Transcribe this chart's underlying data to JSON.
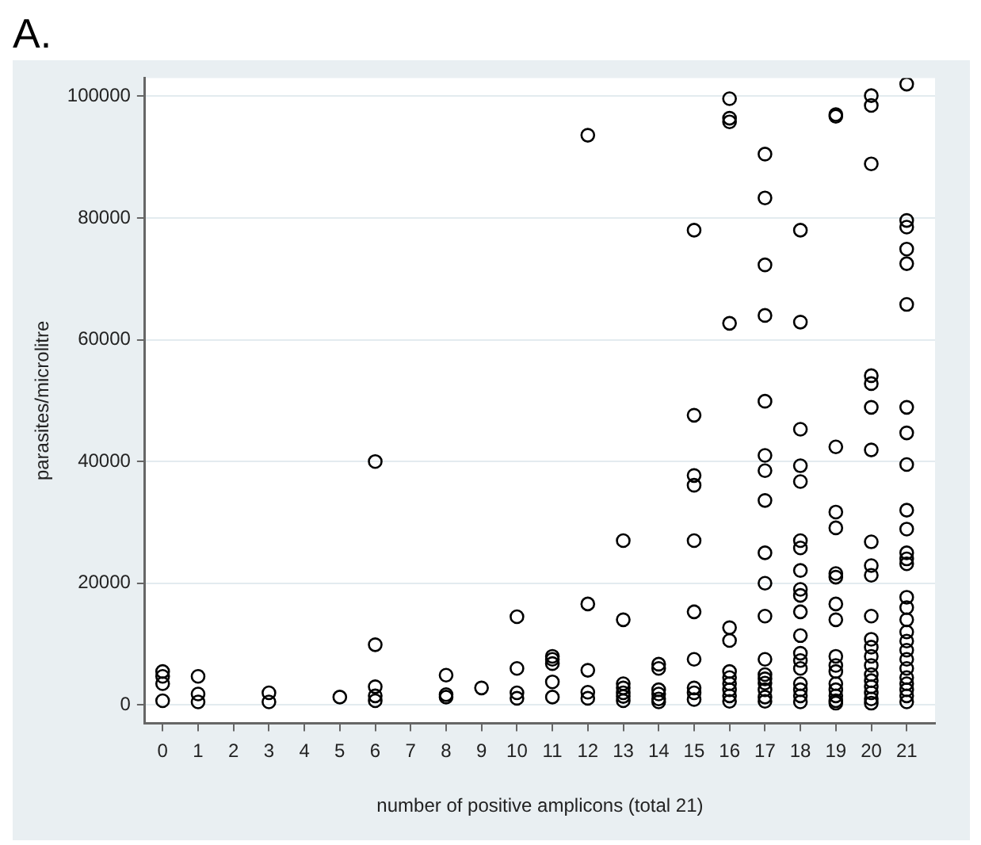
{
  "chart_data": {
    "type": "scatter",
    "title": "A.",
    "xlabel": "number of positive amplicons (total 21)",
    "ylabel": "parasites/microlitre",
    "xlim": [
      -0.5,
      21.8
    ],
    "xticks": [
      0,
      1,
      2,
      3,
      4,
      5,
      6,
      7,
      8,
      9,
      10,
      11,
      12,
      13,
      14,
      15,
      16,
      17,
      18,
      19,
      20,
      21
    ],
    "ylim": [
      -3000,
      103000
    ],
    "yticks": [
      0,
      20000,
      40000,
      60000,
      80000,
      100000
    ],
    "grid": "y",
    "marker": "circle",
    "series": [
      {
        "color": "#000000",
        "x": [
          0,
          0,
          0,
          0,
          1,
          1,
          1,
          3,
          3,
          5,
          6,
          6,
          6,
          6,
          6,
          8,
          8,
          8,
          9,
          10,
          10,
          10,
          10,
          11,
          11,
          11,
          11,
          11,
          12,
          12,
          12,
          12,
          12,
          13,
          13,
          13,
          13,
          13,
          13,
          13,
          14,
          14,
          14,
          14,
          14,
          14
        ],
        "values": [
          5500,
          4700,
          3500,
          700,
          4700,
          1800,
          500,
          2000,
          500,
          1300,
          40000,
          9900,
          3000,
          1500,
          700,
          4900,
          1700,
          1300,
          2800,
          14500,
          6000,
          2000,
          1100,
          8000,
          7500,
          6800,
          3800,
          1300,
          93600,
          16600,
          5700,
          2100,
          1100,
          27000,
          14000,
          3500,
          2800,
          2000,
          1400,
          700,
          6700,
          6000,
          2500,
          1800,
          1000,
          500
        ]
      },
      {
        "color": "#000000",
        "x": [
          15,
          15,
          15,
          15,
          15,
          15,
          15,
          15,
          15,
          15,
          16,
          16,
          16,
          16,
          16,
          16,
          16,
          16,
          16,
          16,
          16,
          16,
          17,
          17,
          17,
          17,
          17,
          17,
          17,
          17,
          17,
          17,
          17,
          17,
          17,
          17,
          17,
          17,
          17,
          17
        ],
        "values": [
          78000,
          47600,
          37700,
          36100,
          27000,
          15300,
          7500,
          2800,
          2000,
          900,
          99600,
          96400,
          95800,
          62700,
          12700,
          10600,
          5500,
          4500,
          3500,
          2500,
          1500,
          600,
          90500,
          83300,
          72300,
          64000,
          49900,
          41000,
          38500,
          33600,
          25000,
          20000,
          14600,
          7500,
          5000,
          4300,
          3600,
          2500,
          1300,
          600
        ]
      },
      {
        "color": "#000000",
        "x": [
          18,
          18,
          18,
          18,
          18,
          18,
          18,
          18,
          18,
          18,
          18,
          18,
          18,
          18,
          18,
          18,
          18,
          18,
          18,
          19,
          19,
          19,
          19,
          19,
          19,
          19,
          19,
          19,
          19,
          19,
          19,
          19,
          19,
          19,
          19,
          19
        ],
        "values": [
          78000,
          62900,
          45300,
          39300,
          36700,
          27000,
          25800,
          22100,
          19000,
          18000,
          15300,
          11400,
          8500,
          7300,
          6000,
          3500,
          2500,
          1500,
          500,
          97000,
          96700,
          42400,
          31700,
          29100,
          21600,
          21000,
          16600,
          14000,
          8000,
          6500,
          5500,
          3500,
          2500,
          1500,
          700,
          300
        ]
      },
      {
        "color": "#000000",
        "x": [
          20,
          20,
          20,
          20,
          20,
          20,
          20,
          20,
          20,
          20,
          20,
          20,
          20,
          20,
          20,
          20,
          20,
          20,
          20,
          20,
          20,
          21,
          21,
          21,
          21,
          21,
          21,
          21,
          21,
          21,
          21,
          21,
          21,
          21,
          21,
          21,
          21,
          21,
          21,
          21,
          21,
          21,
          21,
          21,
          21,
          21,
          21,
          21
        ],
        "values": [
          100100,
          98500,
          88900,
          54100,
          52800,
          48900,
          41900,
          26800,
          22900,
          21300,
          14600,
          10800,
          9500,
          8000,
          6500,
          5000,
          4000,
          3000,
          2000,
          1000,
          300,
          102000,
          79600,
          78500,
          74900,
          72500,
          65800,
          48900,
          44700,
          39500,
          32000,
          28900,
          25000,
          24000,
          23200,
          17700,
          16000,
          14000,
          12000,
          10500,
          9000,
          7500,
          6000,
          4500,
          3500,
          2500,
          1500,
          500
        ]
      }
    ]
  }
}
